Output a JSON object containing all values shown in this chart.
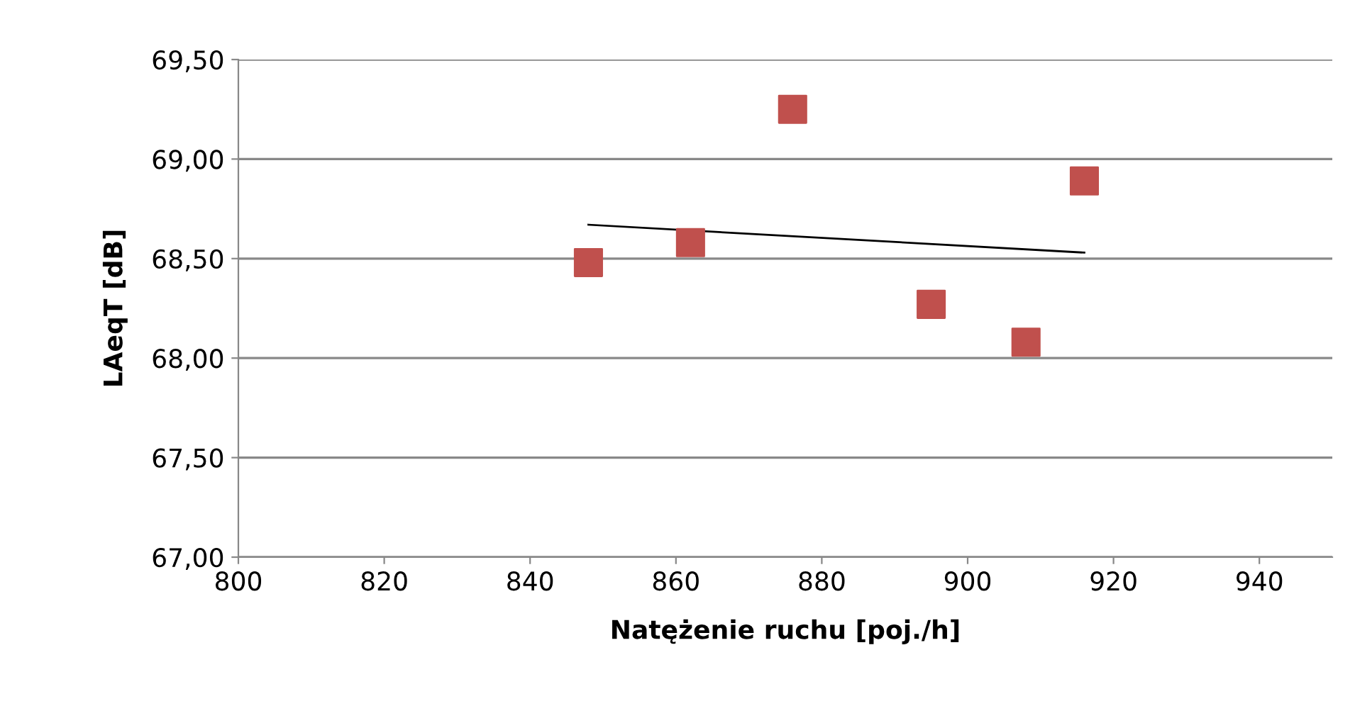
{
  "chart_data": {
    "type": "scatter",
    "xlabel": "Natężenie ruchu [poj./h]",
    "ylabel": "LAeqT [dB]",
    "series": [
      {
        "color": "#c0504d",
        "marker": "square",
        "x": [
          848,
          862,
          876,
          895,
          908,
          916
        ],
        "values": [
          68.48,
          68.58,
          69.25,
          68.27,
          68.08,
          68.89
        ]
      },
      {
        "type": "line",
        "color": "#000000",
        "marker": "none",
        "line_style": "solid",
        "x": [
          848,
          916
        ],
        "values": [
          68.67,
          68.53
        ]
      }
    ],
    "xlim": [
      800,
      950
    ],
    "xticks": [
      800,
      820,
      840,
      860,
      880,
      900,
      920,
      940
    ],
    "ylim": [
      67,
      69.5
    ],
    "yticks": [
      {
        "value": 67,
        "label": "67,00"
      },
      {
        "value": 67.5,
        "label": "67,50"
      },
      {
        "value": 68,
        "label": "68,00"
      },
      {
        "value": 68.5,
        "label": "68,50"
      },
      {
        "value": 69,
        "label": "69,00"
      },
      {
        "value": 69.5,
        "label": "69,50"
      }
    ],
    "grid": "y",
    "legend": false
  }
}
